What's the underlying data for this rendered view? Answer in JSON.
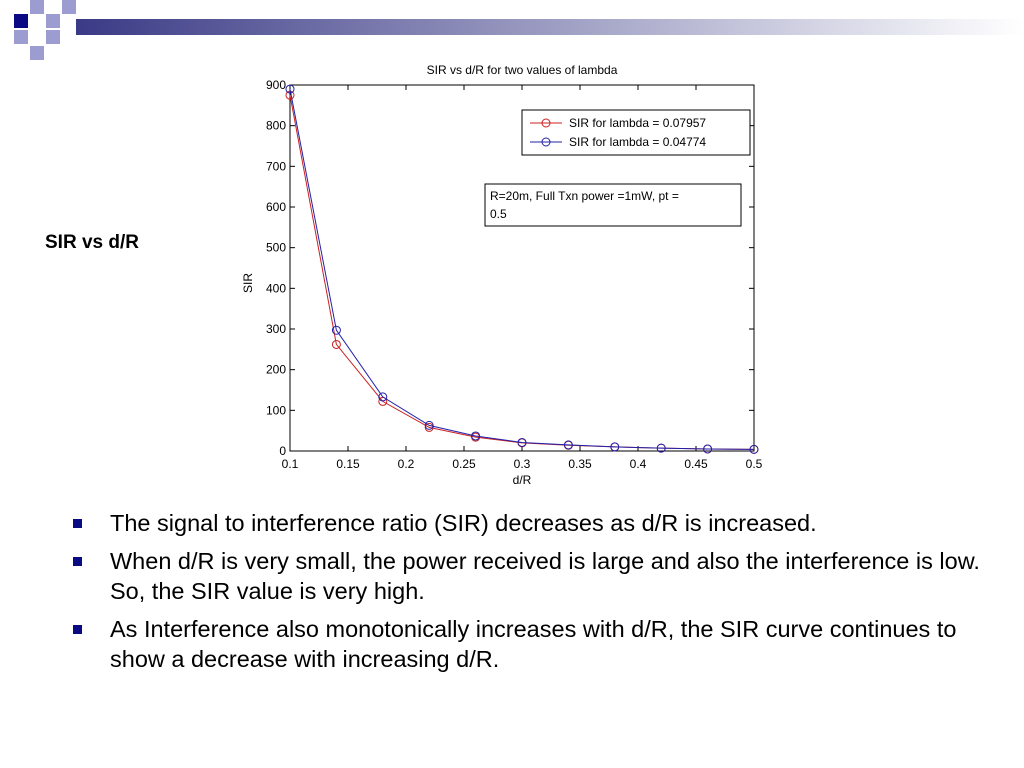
{
  "slide": {
    "side_title": "SIR vs d/R",
    "bullets": [
      "The signal to interference ratio (SIR) decreases as d/R is increased.",
      "When d/R is very small, the power received is large and also the interference is low. So, the SIR value is very high.",
      "As Interference also monotonically increases with d/R, the SIR curve continues to show a decrease with increasing d/R."
    ],
    "colors": {
      "bullet": "#0a0a82",
      "decor_dark": "#0a0a82",
      "decor_light": "#9c9cd0",
      "band_start": "#3a3a86",
      "band_end": "#ffffff"
    }
  },
  "chart_data": {
    "type": "line",
    "title": "SIR vs d/R for two values of lambda",
    "xlabel": "d/R",
    "ylabel": "SIR",
    "xlim": [
      0.1,
      0.5
    ],
    "ylim": [
      0,
      900
    ],
    "xticks": [
      0.1,
      0.15,
      0.2,
      0.25,
      0.3,
      0.35,
      0.4,
      0.45,
      0.5
    ],
    "xtick_labels": [
      "0.1",
      "0.15",
      "0.2",
      "0.25",
      "0.3",
      "0.35",
      "0.4",
      "0.45",
      "0.5"
    ],
    "yticks": [
      0,
      100,
      200,
      300,
      400,
      500,
      600,
      700,
      800,
      900
    ],
    "ytick_labels": [
      "0",
      "100",
      "200",
      "300",
      "400",
      "500",
      "600",
      "700",
      "800",
      "900"
    ],
    "grid": false,
    "legend_position": "top-right",
    "annotation": "R=20m, Full Txn power =1mW, pt = 0.5",
    "marker": "circle",
    "series": [
      {
        "name": "SIR for lambda = 0.07957",
        "color": "#cc2020",
        "x": [
          0.1,
          0.14,
          0.18,
          0.22,
          0.26,
          0.3,
          0.34,
          0.38,
          0.42,
          0.46,
          0.5
        ],
        "y": [
          875,
          262,
          122,
          58,
          34,
          20,
          14,
          10,
          7,
          5,
          4
        ]
      },
      {
        "name": "SIR for lambda = 0.04774",
        "color": "#2020aa",
        "x": [
          0.1,
          0.14,
          0.18,
          0.22,
          0.26,
          0.3,
          0.34,
          0.38,
          0.42,
          0.46,
          0.5
        ],
        "y": [
          890,
          297,
          133,
          63,
          37,
          21,
          15,
          10,
          7,
          5,
          4
        ]
      }
    ]
  }
}
